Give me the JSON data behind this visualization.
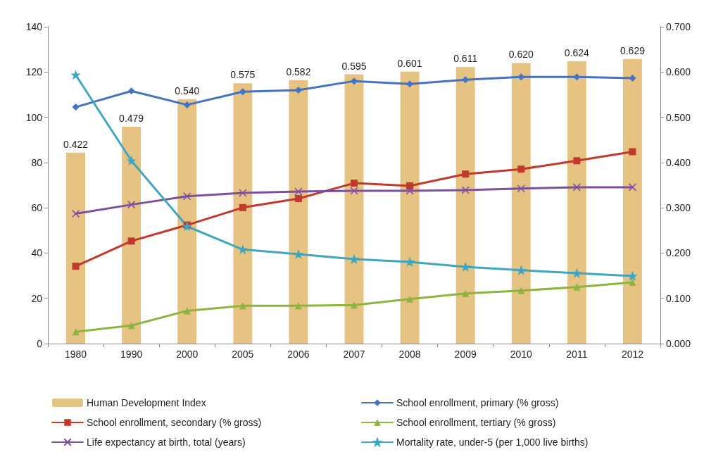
{
  "chart_data": {
    "type": "line",
    "categories": [
      "1980",
      "1990",
      "2000",
      "2005",
      "2006",
      "2007",
      "2008",
      "2009",
      "2010",
      "2011",
      "2012"
    ],
    "series": [
      {
        "name": "Human Development Index",
        "type": "bar",
        "axis": "y2",
        "color": "#e6c383",
        "values": [
          0.422,
          0.479,
          0.54,
          0.575,
          0.582,
          0.595,
          0.601,
          0.611,
          0.62,
          0.624,
          0.629
        ],
        "value_labels": [
          "0.422",
          "0.479",
          "0.540",
          "0.575",
          "0.582",
          "0.595",
          "0.601",
          "0.611",
          "0.620",
          "0.624",
          "0.629"
        ]
      },
      {
        "name": "School enrollment, primary (% gross)",
        "color": "#4472c4",
        "marker": "diamond",
        "values": [
          104.5,
          111.6,
          105.5,
          111.3,
          112,
          116,
          114.7,
          116.6,
          117.8,
          117.8,
          117.3
        ]
      },
      {
        "name": "School enrollment, secondary (% gross)",
        "color": "#c0392b",
        "marker": "square",
        "values": [
          34.2,
          45.3,
          52.4,
          60.1,
          64.1,
          70.9,
          69.7,
          74.9,
          77.1,
          80.8,
          84.8
        ]
      },
      {
        "name": "School enrollment, tertiary (% gross)",
        "color": "#8db43e",
        "marker": "triangle",
        "values": [
          5.2,
          8,
          14.5,
          16.7,
          16.7,
          17,
          19.7,
          22.2,
          23.4,
          25,
          27.1
        ]
      },
      {
        "name": "Life expectancy at birth, total (years)",
        "color": "#7d4f9e",
        "marker": "cross",
        "values": [
          57.4,
          61.4,
          65.1,
          66.6,
          67.2,
          67.5,
          67.5,
          67.8,
          68.5,
          69.1,
          69.1
        ]
      },
      {
        "name": "Mortality rate, under-5 (per 1,000 live births)",
        "color": "#3fa6c2",
        "marker": "star",
        "values": [
          118.7,
          80.8,
          51.8,
          41.6,
          39.5,
          37.3,
          36.1,
          33.9,
          32.4,
          31.1,
          29.9
        ]
      }
    ],
    "ylim": [
      0,
      140
    ],
    "yticks": [
      0,
      20,
      40,
      60,
      80,
      100,
      120,
      140
    ],
    "y2lim": [
      0,
      0.7
    ],
    "y2ticks": [
      {
        "value": 0,
        "label": "0.000"
      },
      {
        "value": 0.1,
        "label": "0.100"
      },
      {
        "value": 0.2,
        "label": "0.200"
      },
      {
        "value": 0.3,
        "label": "0.300"
      },
      {
        "value": 0.4,
        "label": "0.400"
      },
      {
        "value": 0.5,
        "label": "0.500"
      },
      {
        "value": 0.6,
        "label": "0.600"
      },
      {
        "value": 0.7,
        "label": "0.700"
      }
    ],
    "grid": false,
    "legend": "bottom",
    "line_style": "solid"
  }
}
